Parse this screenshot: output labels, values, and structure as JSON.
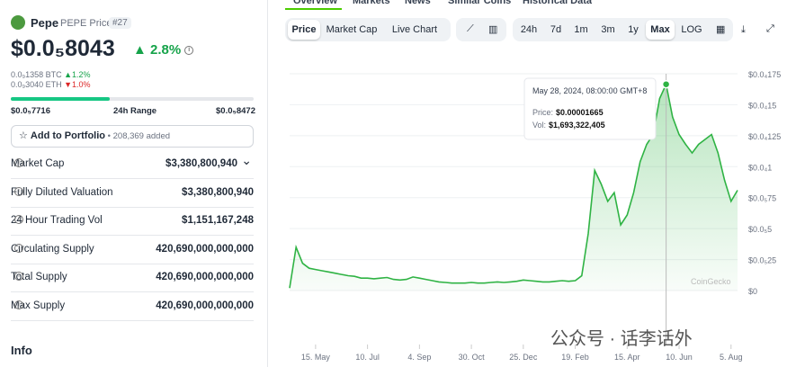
{
  "header": {
    "name": "Pepe",
    "symbol": "PEPE Price",
    "rank": "#27"
  },
  "price": {
    "value": "$0.0₅8043",
    "change": "2.8%",
    "btc": "0.0₉1358 BTC",
    "btc_change": "1.2%",
    "eth": "0.0₉3040 ETH",
    "eth_change": "1.0%"
  },
  "range": {
    "low": "$0.0₅7716",
    "label": "24h Range",
    "high": "$0.0₅8472"
  },
  "portfolio": {
    "button": "Add to Portfolio",
    "added": "208,369 added"
  },
  "stats": [
    {
      "label": "Market Cap",
      "value": "$3,380,800,940"
    },
    {
      "label": "Fully Diluted Valuation",
      "value": "$3,380,800,940"
    },
    {
      "label": "24 Hour Trading Vol",
      "value": "$1,151,167,248"
    },
    {
      "label": "Circulating Supply",
      "value": "420,690,000,000,000"
    },
    {
      "label": "Total Supply",
      "value": "420,690,000,000,000"
    },
    {
      "label": "Max Supply",
      "value": "420,690,000,000,000"
    }
  ],
  "info": "Info",
  "tabs": [
    "Overview",
    "Markets",
    "News",
    "Similar Coins",
    "Historical Data"
  ],
  "chart_tabs": [
    "Price",
    "Market Cap",
    "Live Chart"
  ],
  "ranges": [
    "24h",
    "7d",
    "1m",
    "3m",
    "1y",
    "Max",
    "LOG"
  ],
  "chart": {
    "type": "line",
    "color": "#2fb344",
    "values": [
      2e-07,
      3.5e-06,
      2.2e-06,
      1.8e-06,
      1.7e-06,
      1.6e-06,
      1.5e-06,
      1.4e-06,
      1.3e-06,
      1.2e-06,
      1.15e-06,
      1e-06,
      1e-06,
      9.5e-07,
      1e-06,
      1.05e-06,
      9e-07,
      8.5e-07,
      9e-07,
      1.1e-06,
      1e-06,
      9e-07,
      8e-07,
      7e-07,
      6.5e-07,
      6e-07,
      6e-07,
      6e-07,
      6.5e-07,
      6e-07,
      6e-07,
      6.5e-07,
      7e-07,
      6.5e-07,
      7e-07,
      7.5e-07,
      8.5e-07,
      8e-07,
      7.5e-07,
      7e-07,
      7e-07,
      7.5e-07,
      8e-07,
      7.5e-07,
      8e-07,
      1.2e-06,
      4.6e-06,
      9.7e-06,
      8.6e-06,
      7.2e-06,
      7.9e-06,
      5.3e-06,
      6.1e-06,
      7.9e-06,
      1.04e-05,
      1.18e-05,
      1.26e-05,
      1.55e-05,
      1.665e-05,
      1.4e-05,
      1.26e-05,
      1.18e-05,
      1.11e-05,
      1.18e-05,
      1.22e-05,
      1.26e-05,
      1.11e-05,
      8.9e-06,
      7.2e-06,
      8.1e-06
    ],
    "xlim": [
      0,
      69
    ],
    "xticks": [
      {
        "value": 4,
        "label": "15. May"
      },
      {
        "value": 12,
        "label": "10. Jul"
      },
      {
        "value": 20,
        "label": "4. Sep"
      },
      {
        "value": 28,
        "label": "30. Oct"
      },
      {
        "value": 36,
        "label": "25. Dec"
      },
      {
        "value": 44,
        "label": "19. Feb"
      },
      {
        "value": 52,
        "label": "15. Apr"
      },
      {
        "value": 60,
        "label": "10. Jun"
      },
      {
        "value": 68,
        "label": "5. Aug"
      }
    ],
    "ylim": [
      0,
      1.75e-05
    ],
    "yticks": [
      {
        "value": 0,
        "label": "$0"
      },
      {
        "value": 2.5e-06,
        "label": "$0.0₅25"
      },
      {
        "value": 5e-06,
        "label": "$0.0₅5"
      },
      {
        "value": 7.5e-06,
        "label": "$0.0₅75"
      },
      {
        "value": 1e-05,
        "label": "$0.0₄1"
      },
      {
        "value": 1.25e-05,
        "label": "$0.0₄125"
      },
      {
        "value": 1.5e-05,
        "label": "$0.0₄15"
      },
      {
        "value": 1.75e-05,
        "label": "$0.0₄175"
      }
    ],
    "tooltip": {
      "index": 58,
      "date": "May 28, 2024, 08:00:00 GMT+8",
      "price_label": "Price:",
      "price": "$0.00001665",
      "vol_label": "Vol:",
      "vol": "$1,693,322,405"
    },
    "watermark": "CoinGecko"
  },
  "overlay": "公众号 · 话李话外"
}
